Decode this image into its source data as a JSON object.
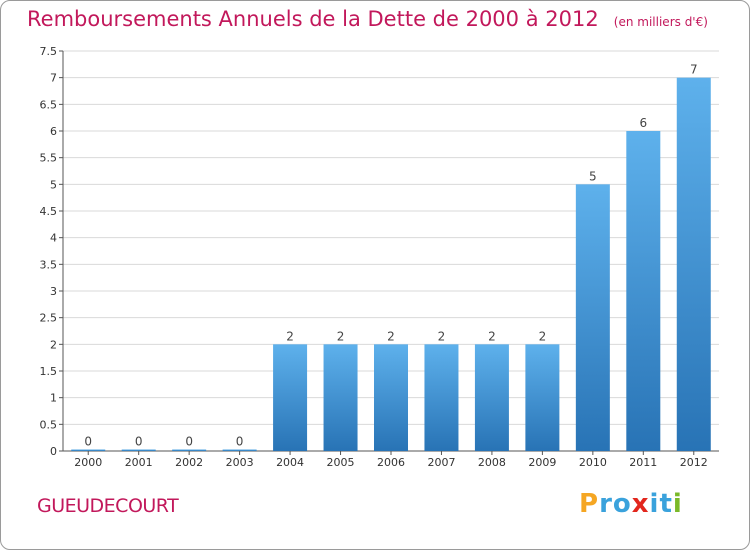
{
  "header": {
    "title": "Remboursements Annuels de la Dette de 2000 à 2012",
    "subtitle": "(en milliers d'€)"
  },
  "footer": {
    "commune": "GUEUDECOURT",
    "logo": [
      {
        "char": "P",
        "color": "#f5a623"
      },
      {
        "char": "r",
        "color": "#3aa2dc"
      },
      {
        "char": "o",
        "color": "#3aa2dc"
      },
      {
        "char": "x",
        "color": "#e2261d"
      },
      {
        "char": "i",
        "color": "#3aa2dc"
      },
      {
        "char": "t",
        "color": "#3aa2dc"
      },
      {
        "char": "i",
        "color": "#7ab929"
      }
    ]
  },
  "colors": {
    "title": "#c2185b",
    "bar_top": "#5eb1ec",
    "bar_bottom": "#2873b5",
    "grid": "#d9d9d9",
    "axis": "#555555"
  },
  "chart_data": {
    "type": "bar",
    "categories": [
      "2000",
      "2001",
      "2002",
      "2003",
      "2004",
      "2005",
      "2006",
      "2007",
      "2008",
      "2009",
      "2010",
      "2011",
      "2012"
    ],
    "values": [
      0,
      0,
      0,
      0,
      2,
      2,
      2,
      2,
      2,
      2,
      5,
      6,
      7
    ],
    "data_labels": [
      "0",
      "0",
      "0",
      "0",
      "2",
      "2",
      "2",
      "2",
      "2",
      "2",
      "5",
      "6",
      "7"
    ],
    "y_ticks": [
      "0",
      "0.5",
      "1",
      "1.5",
      "2",
      "2.5",
      "3",
      "3.5",
      "4",
      "4.5",
      "5",
      "5.5",
      "6",
      "6.5",
      "7",
      "7.5"
    ],
    "ylim": [
      0,
      7.5
    ],
    "grid": true
  }
}
